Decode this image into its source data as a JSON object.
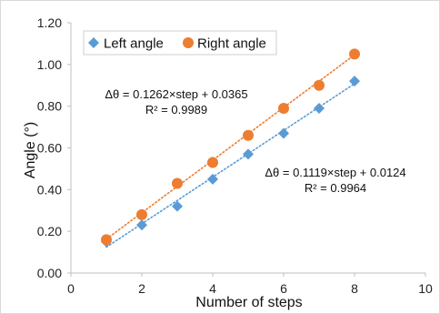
{
  "chart_data": {
    "type": "scatter",
    "title": "",
    "xlabel": "Number of steps",
    "ylabel": "Angle (°)",
    "xlim": [
      0,
      10
    ],
    "ylim": [
      0,
      1.2
    ],
    "xticks": [
      0,
      2,
      4,
      6,
      8,
      10
    ],
    "yticks": [
      0,
      0.2,
      0.4,
      0.6,
      0.8,
      1.0,
      1.2
    ],
    "x_tick_labels": [
      "0",
      "2",
      "4",
      "6",
      "8",
      "10"
    ],
    "y_tick_labels": [
      "0.00",
      "0.20",
      "0.40",
      "0.60",
      "0.80",
      "1.00",
      "1.20"
    ],
    "grid": false,
    "legend_position": "top-left",
    "series": [
      {
        "name": "Left angle",
        "marker": "diamond",
        "color": "#5b9bd5",
        "x": [
          1,
          2,
          3,
          4,
          5,
          6,
          7,
          8
        ],
        "y": [
          0.15,
          0.23,
          0.32,
          0.45,
          0.57,
          0.67,
          0.79,
          0.92
        ],
        "trendline": {
          "slope": 0.1119,
          "intercept": 0.0124,
          "equation": "Δθ = 0.1119×step + 0.0124",
          "r2": "R² = 0.9964",
          "color": "#5b9bd5",
          "style": "dotted"
        }
      },
      {
        "name": "Right angle",
        "marker": "circle",
        "color": "#ed7d31",
        "x": [
          1,
          2,
          3,
          4,
          5,
          6,
          7,
          8
        ],
        "y": [
          0.16,
          0.28,
          0.43,
          0.53,
          0.66,
          0.79,
          0.9,
          1.05
        ],
        "trendline": {
          "slope": 0.1262,
          "intercept": 0.0365,
          "equation": "Δθ = 0.1262×step + 0.0365",
          "r2": "R² = 0.9989",
          "color": "#ed7d31",
          "style": "dotted"
        }
      }
    ]
  }
}
